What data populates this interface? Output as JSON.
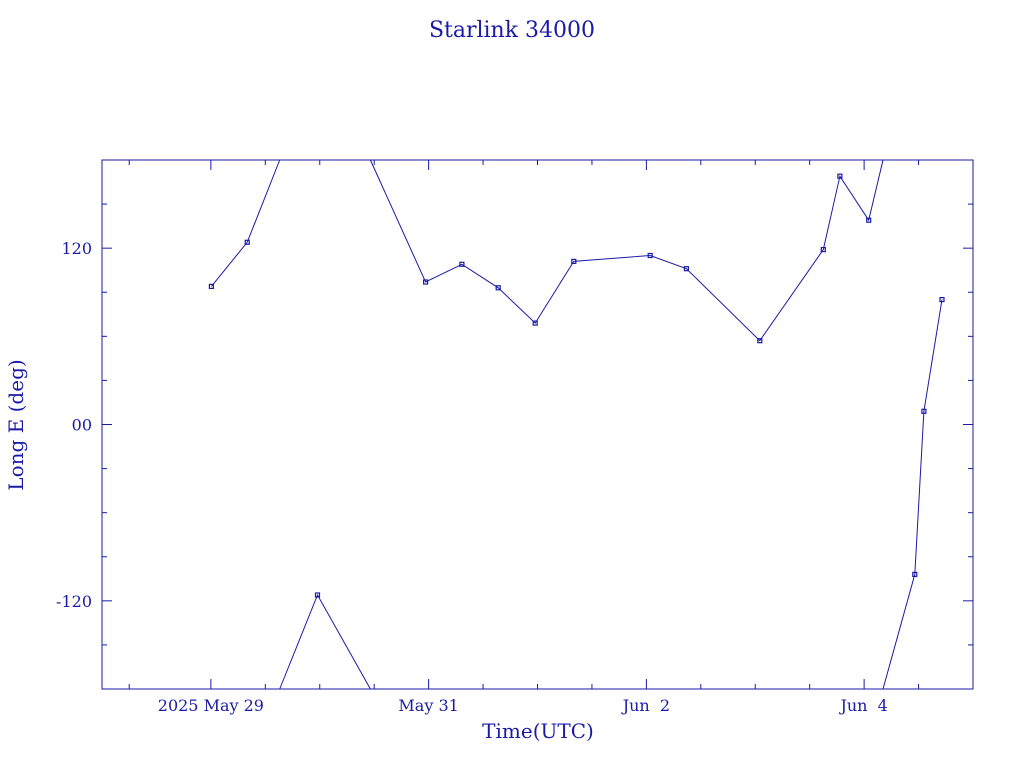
{
  "chart_data": {
    "type": "line",
    "title": "Starlink 34000",
    "xlabel": "Time(UTC)",
    "ylabel": "Long E (deg)",
    "x_axis": {
      "type": "date",
      "range": [
        "2025-05-28T00:00",
        "2025-06-05T00:00"
      ],
      "major_ticks": [
        {
          "value": "2025-05-29T00:00",
          "label": "2025 May 29"
        },
        {
          "value": "2025-05-31T00:00",
          "label": "May 31"
        },
        {
          "value": "2025-06-02T00:00",
          "label": "Jun  2"
        },
        {
          "value": "2025-06-04T00:00",
          "label": "Jun  4"
        }
      ],
      "minor_ticks": [
        "2025-05-28T06:00",
        "2025-05-29T12:00",
        "2025-05-30T00:00",
        "2025-05-30T12:00",
        "2025-05-31T12:00",
        "2025-06-01T00:00",
        "2025-06-01T12:00",
        "2025-06-02T12:00",
        "2025-06-03T00:00",
        "2025-06-03T12:00",
        "2025-06-04T12:00",
        "2025-06-05T00:00",
        "2025-06-05T12:00"
      ]
    },
    "y_axis": {
      "range": [
        -180,
        180
      ],
      "major_ticks": [
        {
          "value": 120,
          "label": "120"
        },
        {
          "value": 0,
          "label": "00"
        },
        {
          "value": -120,
          "label": "-120"
        }
      ],
      "minor_ticks": [
        150,
        90,
        60,
        30,
        -30,
        -60,
        -90,
        -150
      ]
    },
    "segments": [
      {
        "points": [
          {
            "t": "2025-05-29T00:07",
            "lon": 94
          },
          {
            "t": "2025-05-29T08:00",
            "lon": 124
          },
          {
            "t": "2025-05-29T15:10",
            "lon": 180
          }
        ]
      },
      {
        "points": [
          {
            "t": "2025-05-29T15:10",
            "lon": -180
          },
          {
            "t": "2025-05-29T23:30",
            "lon": -116
          },
          {
            "t": "2025-05-30T11:10",
            "lon": -180
          }
        ]
      },
      {
        "points": [
          {
            "t": "2025-05-30T11:10",
            "lon": 180
          },
          {
            "t": "2025-05-30T23:20",
            "lon": 97
          },
          {
            "t": "2025-05-31T07:20",
            "lon": 109
          },
          {
            "t": "2025-05-31T15:20",
            "lon": 93
          },
          {
            "t": "2025-05-31T23:30",
            "lon": 69
          },
          {
            "t": "2025-06-01T08:00",
            "lon": 111
          },
          {
            "t": "2025-06-02T00:50",
            "lon": 115
          },
          {
            "t": "2025-06-02T08:50",
            "lon": 106
          },
          {
            "t": "2025-06-03T01:00",
            "lon": 57
          },
          {
            "t": "2025-06-03T15:00",
            "lon": 119
          },
          {
            "t": "2025-06-03T18:40",
            "lon": 169
          },
          {
            "t": "2025-06-04T01:00",
            "lon": 139
          },
          {
            "t": "2025-06-04T04:10",
            "lon": 180
          }
        ]
      },
      {
        "points": [
          {
            "t": "2025-06-04T04:10",
            "lon": -180
          },
          {
            "t": "2025-06-04T11:10",
            "lon": -102
          },
          {
            "t": "2025-06-04T13:10",
            "lon": 9
          },
          {
            "t": "2025-06-04T17:10",
            "lon": 85
          }
        ]
      }
    ],
    "markers_shown": true,
    "grid": false,
    "legend": "none"
  }
}
